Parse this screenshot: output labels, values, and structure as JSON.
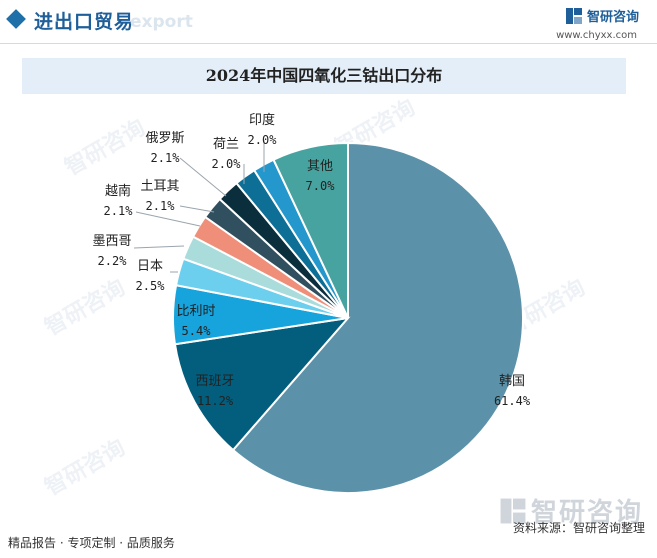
{
  "header": {
    "title": "进出口贸易",
    "watermark": "export",
    "brand_name": "智研咨询",
    "brand_url": "www.chyxx.com"
  },
  "chart_data": {
    "type": "pie",
    "title": "2024年中国四氧化三钴出口分布",
    "slices": [
      {
        "label": "韩国",
        "value": 61.4,
        "display": "61.4%",
        "color": "#5b92a9"
      },
      {
        "label": "西班牙",
        "value": 11.2,
        "display": "11.2%",
        "color": "#035d7c"
      },
      {
        "label": "比利时",
        "value": 5.4,
        "display": "5.4%",
        "color": "#17a3db"
      },
      {
        "label": "日本",
        "value": 2.5,
        "display": "2.5%",
        "color": "#6dcfee"
      },
      {
        "label": "墨西哥",
        "value": 2.2,
        "display": "2.2%",
        "color": "#a9dcdb"
      },
      {
        "label": "越南",
        "value": 2.1,
        "display": "2.1%",
        "color": "#ef8f7a"
      },
      {
        "label": "土耳其",
        "value": 2.1,
        "display": "2.1%",
        "color": "#31505f"
      },
      {
        "label": "俄罗斯",
        "value": 2.1,
        "display": "2.1%",
        "color": "#0b2e3d"
      },
      {
        "label": "荷兰",
        "value": 2.0,
        "display": "2.0%",
        "color": "#0d6f96"
      },
      {
        "label": "印度",
        "value": 2.0,
        "display": "2.0%",
        "color": "#2497cc"
      },
      {
        "label": "其他",
        "value": 7.0,
        "display": "7.0%",
        "color": "#47a39f"
      }
    ]
  },
  "footer": {
    "left_text": "精品报告 · 专项定制 · 品质服务",
    "source_text": "资料来源：智研咨询整理",
    "watermark_text": "智研咨询"
  }
}
